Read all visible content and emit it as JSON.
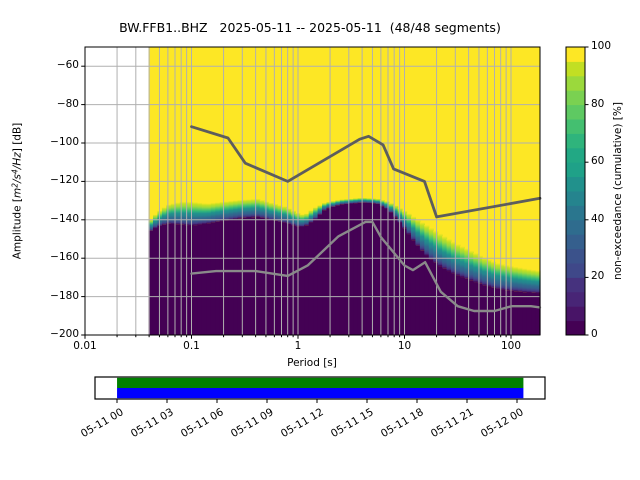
{
  "title": "BW.FFB1..BHZ   2025-05-11 -- 2025-05-11  (48/48 segments)",
  "chart_data": {
    "type": "heatmap",
    "subtype": "ppsd-cumulative-spectral-density",
    "title": "BW.FFB1..BHZ   2025-05-11 -- 2025-05-11  (48/48 segments)",
    "station": "BW.FFB1..BHZ",
    "date_range": "2025-05-11 -- 2025-05-11",
    "segments": "48/48 segments",
    "grid": true,
    "x_axis": {
      "label": "Period [s]",
      "scale": "log",
      "range": [
        0.01,
        187
      ],
      "tick_values": [
        0.01,
        0.1,
        1,
        10,
        100
      ],
      "tick_labels": [
        "0.01",
        "0.1",
        "1",
        "10",
        "100"
      ]
    },
    "y_axis": {
      "label": "Amplitude [m2/s4/Hz] [dB]",
      "label_parts": [
        {
          "t": "Amplitude [",
          "i": 0,
          "s": 0
        },
        {
          "t": "m",
          "i": 1,
          "s": 0
        },
        {
          "t": "2",
          "i": 1,
          "s": 1
        },
        {
          "t": "/s",
          "i": 1,
          "s": 0
        },
        {
          "t": "4",
          "i": 1,
          "s": 1
        },
        {
          "t": "/Hz",
          "i": 1,
          "s": 0
        },
        {
          "t": "] [dB]",
          "i": 0,
          "s": 0
        }
      ],
      "range": [
        -200,
        -50
      ],
      "tick_values": [
        -60,
        -80,
        -100,
        -120,
        -140,
        -160,
        -180,
        -200
      ],
      "tick_labels": [
        "−60",
        "−80",
        "−100",
        "−120",
        "−140",
        "−160",
        "−180",
        "−200"
      ]
    },
    "colorbar": {
      "label": "non-exceedance (cumulative) [%]",
      "range": [
        0,
        100
      ],
      "tick_values": [
        0,
        20,
        40,
        60,
        80,
        100
      ],
      "tick_labels": [
        "0",
        "20",
        "40",
        "60",
        "80",
        "100"
      ],
      "n_steps": 20,
      "colors_bottom_to_top": [
        "#440154",
        "#481467",
        "#482576",
        "#46327e",
        "#3f4889",
        "#3b528b",
        "#355f8d",
        "#2f6c8e",
        "#2a768e",
        "#25848e",
        "#21918c",
        "#1fa188",
        "#22a884",
        "#2fb47c",
        "#44bf70",
        "#5ec962",
        "#7ad151",
        "#9bd93c",
        "#c2df23",
        "#fde725"
      ]
    },
    "colors": {
      "max_pct": "#fde725",
      "min_pct": "#440154",
      "grid": "#b0b0b0",
      "frame": "#000000",
      "nhnm_line": "#5d5d5d",
      "nlnm_line": "#8a8a8a"
    },
    "gradient_stops": [
      [
        0,
        "#fde725"
      ],
      [
        0.1,
        "#c2df23"
      ],
      [
        0.2,
        "#9bd93c"
      ],
      [
        0.3,
        "#5ec962"
      ],
      [
        0.4,
        "#2fb47c"
      ],
      [
        0.5,
        "#21918c"
      ],
      [
        0.6,
        "#25848e"
      ],
      [
        0.7,
        "#2f6c8e"
      ],
      [
        0.8,
        "#355f8d"
      ],
      [
        0.88,
        "#3f4889"
      ],
      [
        0.94,
        "#46327e"
      ],
      [
        1,
        "#440154"
      ]
    ],
    "data_period_range": [
      0.0395,
      187
    ],
    "distribution": {
      "description": "Per period [s]: hi = dB level of 100% non-exceedance boundary (yellow above), lo = dB level of 0% boundary (dark purple below, down to -200 dB)",
      "points": [
        [
          0.0395,
          -141,
          -146.5
        ],
        [
          0.048,
          -136,
          -143.5
        ],
        [
          0.06,
          -132,
          -142
        ],
        [
          0.08,
          -130.5,
          -142.5
        ],
        [
          0.1,
          -130.5,
          -143
        ],
        [
          0.14,
          -131.5,
          -142
        ],
        [
          0.2,
          -130.5,
          -140.5
        ],
        [
          0.3,
          -129.5,
          -139
        ],
        [
          0.42,
          -129,
          -138.5
        ],
        [
          0.55,
          -131,
          -140
        ],
        [
          0.75,
          -133,
          -141.5
        ],
        [
          1.0,
          -136.5,
          -143.5
        ],
        [
          1.15,
          -137.5,
          -143.5
        ],
        [
          1.4,
          -134,
          -140.5
        ],
        [
          1.8,
          -131,
          -134.5
        ],
        [
          2.5,
          -129.5,
          -132
        ],
        [
          4.0,
          -128.5,
          -131
        ],
        [
          5.5,
          -129,
          -131.5
        ],
        [
          7.0,
          -130.5,
          -134.5
        ],
        [
          8.5,
          -133,
          -139.5
        ],
        [
          10.5,
          -136,
          -146
        ],
        [
          13,
          -139.5,
          -153
        ],
        [
          17,
          -143.5,
          -160
        ],
        [
          22,
          -147.5,
          -164.5
        ],
        [
          30,
          -152,
          -168.5
        ],
        [
          42,
          -156,
          -171.5
        ],
        [
          55,
          -159.5,
          -174
        ],
        [
          75,
          -162.5,
          -176
        ],
        [
          100,
          -164,
          -177
        ],
        [
          140,
          -165.5,
          -177.8
        ],
        [
          187,
          -166.5,
          -178.2
        ]
      ]
    },
    "noise_models": {
      "description": "Peterson (1993) New High / New Low Noise Model, period [s] vs dB",
      "nhnm": [
        [
          0.1,
          -91.5
        ],
        [
          0.22,
          -97.4
        ],
        [
          0.32,
          -110.5
        ],
        [
          0.8,
          -120.0
        ],
        [
          3.8,
          -98.0
        ],
        [
          4.6,
          -96.5
        ],
        [
          6.3,
          -101.0
        ],
        [
          7.9,
          -113.5
        ],
        [
          15.4,
          -120.0
        ],
        [
          20.0,
          -138.5
        ],
        [
          187,
          -128.8
        ]
      ],
      "nlnm": [
        [
          0.1,
          -168.0
        ],
        [
          0.17,
          -166.7
        ],
        [
          0.4,
          -166.7
        ],
        [
          0.8,
          -169.2
        ],
        [
          1.24,
          -163.7
        ],
        [
          2.4,
          -148.6
        ],
        [
          4.3,
          -141.1
        ],
        [
          5.0,
          -141.1
        ],
        [
          6.0,
          -149.0
        ],
        [
          10.0,
          -163.8
        ],
        [
          12.0,
          -166.2
        ],
        [
          15.6,
          -162.1
        ],
        [
          21.9,
          -177.5
        ],
        [
          31.6,
          -185.0
        ],
        [
          45.0,
          -187.5
        ],
        [
          70.0,
          -187.5
        ],
        [
          101.0,
          -185.0
        ],
        [
          154.0,
          -185.0
        ],
        [
          187,
          -185.6
        ]
      ]
    },
    "timeline": {
      "tick_labels": [
        "05-11 00",
        "05-11 03",
        "05-11 06",
        "05-11 09",
        "05-11 12",
        "05-11 15",
        "05-11 18",
        "05-11 21",
        "05-12 00"
      ],
      "bar_top_color": "#008000",
      "bar_bottom_color": "#0000ff",
      "coverage_start_frac": 0.049,
      "coverage_end_frac": 0.952
    }
  }
}
